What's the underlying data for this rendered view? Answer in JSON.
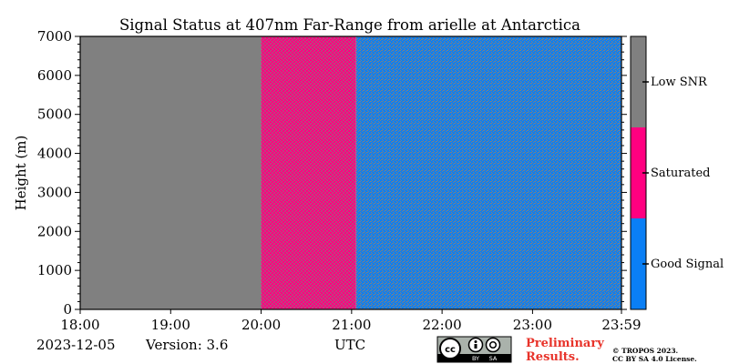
{
  "chart_data": {
    "type": "heatmap",
    "title": "Signal Status at 407nm Far-Range from arielle at Antarctica",
    "ylabel": "Height (m)",
    "xlabel": "UTC",
    "x_tick_labels": [
      "18:00",
      "19:00",
      "20:00",
      "21:00",
      "22:00",
      "23:00",
      "23:59"
    ],
    "x_tick_hours": [
      18,
      19,
      20,
      21,
      22,
      23,
      23.983
    ],
    "xlim_hours": [
      18,
      23.983
    ],
    "y_ticks": [
      0,
      1000,
      2000,
      3000,
      4000,
      5000,
      6000,
      7000
    ],
    "ylim": [
      0,
      7000
    ],
    "categories": [
      "Good Signal",
      "Saturated",
      "Low SNR"
    ],
    "category_colors": [
      "#0a7ff5",
      "#ff0080",
      "#808080"
    ],
    "regions": [
      {
        "start_hour": 18.0,
        "end_hour": 20.0,
        "pattern": "Low SNR"
      },
      {
        "start_hour": 20.0,
        "end_hour": 21.05,
        "pattern": "Saturated with Low SNR speckle"
      },
      {
        "start_hour": 21.05,
        "end_hour": 23.983,
        "pattern": "Good Signal with Low SNR speckle"
      }
    ]
  },
  "footer": {
    "date": "2023-12-05",
    "version": "Version: 3.6",
    "axis_unit": "UTC",
    "preliminary_line1": "Preliminary",
    "preliminary_line2": "Results.",
    "copyright_line1": "© TROPOS 2023.",
    "copyright_line2": "CC BY SA 4.0 License.",
    "license_by": "BY",
    "license_sa": "SA",
    "license_icon": "cc-by-sa-icon",
    "preliminary_color": "#e8332a"
  }
}
